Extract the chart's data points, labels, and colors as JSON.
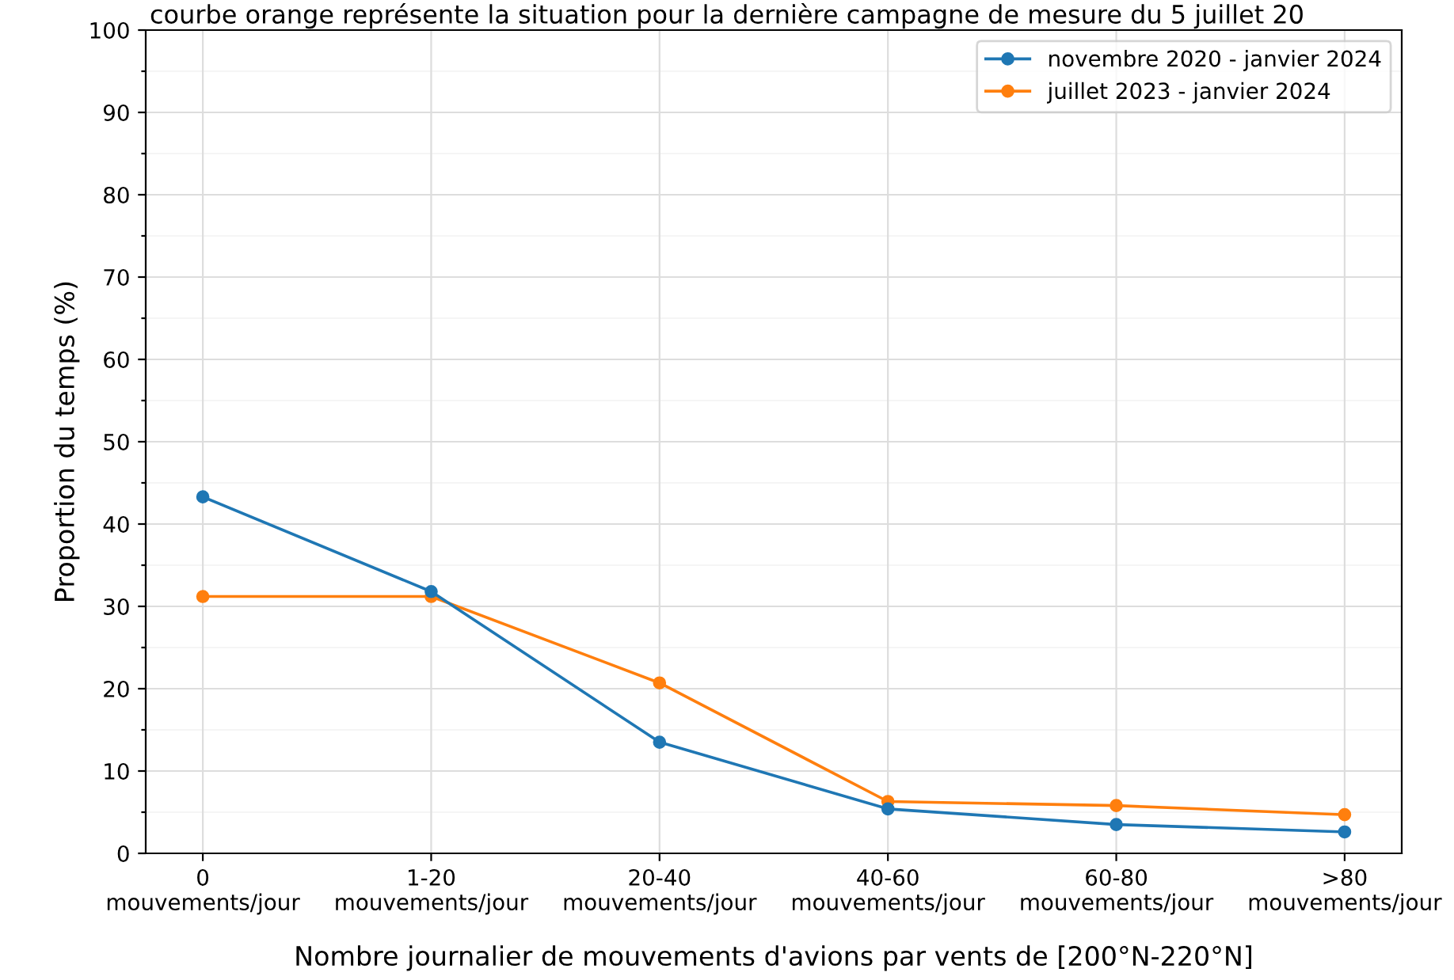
{
  "chart_data": {
    "type": "line",
    "annotations": [
      "courbe orange représente la situation pour la dernière campagne de mesure du 5 juillet 20"
    ],
    "xlabel": "Nombre journalier de mouvements d'avions par vents de [200°N-220°N]",
    "ylabel": "Proportion du temps (%)",
    "categories": [
      "0\nmouvements/jour",
      "1-20\nmouvements/jour",
      "20-40\nmouvements/jour",
      "40-60\nmouvements/jour",
      "60-80\nmouvements/jour",
      ">80\nmouvements/jour"
    ],
    "series": [
      {
        "name": "novembre 2020 - janvier 2024",
        "color": "#1f77b4",
        "values": [
          43.3,
          31.8,
          13.5,
          5.4,
          3.5,
          2.6
        ]
      },
      {
        "name": "juillet 2023 - janvier 2024",
        "color": "#ff7f0e",
        "values": [
          31.2,
          31.2,
          20.7,
          6.3,
          5.8,
          4.7
        ]
      }
    ],
    "ylim": [
      0,
      100
    ],
    "yticks": [
      0,
      {
        "value": 5,
        "label": null
      },
      10,
      {
        "value": 15,
        "label": null
      },
      20,
      {
        "value": 25,
        "label": null
      },
      30,
      {
        "value": 35,
        "label": null
      },
      40,
      {
        "value": 45,
        "label": null
      },
      50,
      {
        "value": 55,
        "label": null
      },
      60,
      {
        "value": 65,
        "label": null
      },
      70,
      {
        "value": 75,
        "label": null
      },
      80,
      {
        "value": 85,
        "label": null
      },
      90,
      {
        "value": 95,
        "label": null
      },
      100
    ],
    "grid": true,
    "legend": "top right",
    "marker": "circle",
    "line_style": "solid"
  }
}
